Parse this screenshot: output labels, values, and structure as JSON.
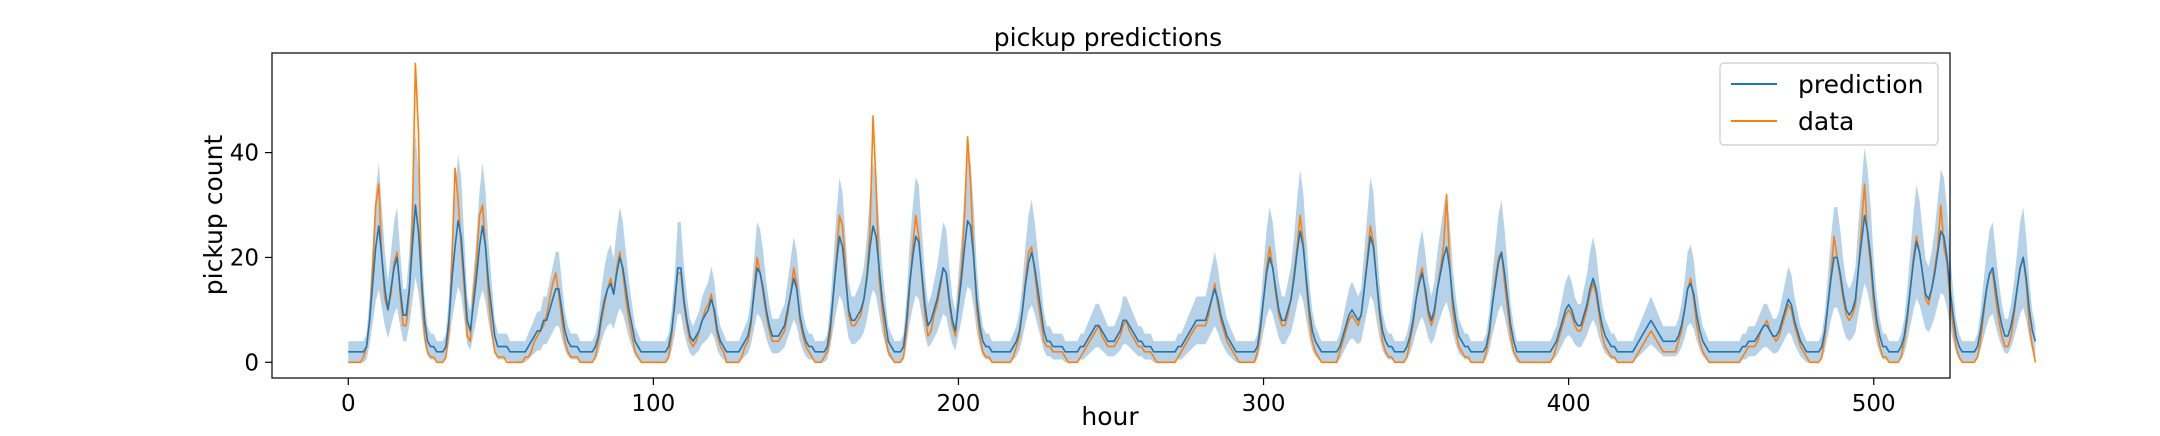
{
  "chart_data": {
    "type": "line",
    "title": "pickup predictions",
    "xlabel": "hour",
    "ylabel": "pickup count",
    "xlim": [
      -25,
      525
    ],
    "ylim": [
      -3,
      59
    ],
    "xticks": [
      0,
      100,
      200,
      300,
      400,
      500
    ],
    "yticks": [
      0,
      20,
      40
    ],
    "grid": false,
    "legend_position": "top-right",
    "colors": {
      "prediction": "#1f77b4",
      "data": "#ff7f0e",
      "band": "#9ec3e0"
    },
    "band_label": "",
    "x_step": 1,
    "series": [
      {
        "name": "prediction",
        "values": [
          2,
          2,
          2,
          2,
          2,
          2,
          3,
          8,
          15,
          22,
          26,
          20,
          14,
          10,
          14,
          18,
          20,
          14,
          9,
          9,
          14,
          22,
          30,
          25,
          16,
          8,
          4,
          3,
          3,
          2,
          2,
          2,
          3,
          8,
          16,
          22,
          27,
          24,
          16,
          8,
          6,
          11,
          16,
          22,
          26,
          22,
          15,
          10,
          5,
          3,
          3,
          3,
          3,
          2,
          2,
          2,
          2,
          2,
          2,
          3,
          4,
          5,
          6,
          6,
          8,
          8,
          10,
          12,
          14,
          14,
          10,
          6,
          4,
          3,
          3,
          3,
          2,
          2,
          2,
          2,
          2,
          3,
          5,
          9,
          12,
          14,
          15,
          13,
          17,
          20,
          18,
          14,
          10,
          7,
          4,
          3,
          2,
          2,
          2,
          2,
          2,
          2,
          2,
          2,
          2,
          3,
          6,
          11,
          18,
          18,
          12,
          8,
          5,
          4,
          5,
          6,
          8,
          9,
          10,
          12,
          10,
          6,
          4,
          3,
          2,
          2,
          2,
          2,
          2,
          3,
          4,
          5,
          8,
          13,
          18,
          17,
          14,
          10,
          7,
          5,
          5,
          5,
          6,
          7,
          10,
          13,
          16,
          14,
          9,
          6,
          4,
          3,
          3,
          2,
          2,
          2,
          2,
          3,
          7,
          13,
          19,
          24,
          22,
          16,
          10,
          8,
          8,
          9,
          10,
          12,
          16,
          22,
          26,
          24,
          18,
          12,
          8,
          4,
          3,
          2,
          2,
          2,
          3,
          8,
          15,
          20,
          24,
          23,
          17,
          11,
          7,
          8,
          10,
          12,
          15,
          18,
          17,
          12,
          8,
          6,
          11,
          16,
          22,
          27,
          26,
          20,
          12,
          7,
          4,
          3,
          3,
          2,
          2,
          2,
          2,
          2,
          2,
          2,
          3,
          4,
          6,
          10,
          15,
          19,
          21,
          18,
          14,
          10,
          6,
          4,
          4,
          3,
          3,
          3,
          3,
          2,
          2,
          2,
          2,
          2,
          3,
          3,
          4,
          5,
          6,
          7,
          7,
          6,
          5,
          4,
          4,
          4,
          5,
          6,
          8,
          8,
          7,
          6,
          5,
          4,
          4,
          3,
          3,
          3,
          2,
          2,
          2,
          2,
          2,
          2,
          2,
          2,
          3,
          3,
          4,
          5,
          6,
          7,
          8,
          8,
          8,
          8,
          10,
          12,
          14,
          12,
          9,
          7,
          5,
          4,
          3,
          2,
          2,
          2,
          2,
          2,
          2,
          2,
          3,
          7,
          12,
          17,
          20,
          18,
          14,
          10,
          8,
          8,
          10,
          12,
          16,
          21,
          25,
          22,
          16,
          10,
          6,
          4,
          3,
          2,
          2,
          2,
          2,
          2,
          2,
          3,
          5,
          7,
          9,
          10,
          9,
          8,
          9,
          14,
          19,
          24,
          22,
          16,
          10,
          6,
          4,
          3,
          3,
          2,
          2,
          2,
          2,
          3,
          5,
          8,
          12,
          15,
          17,
          14,
          10,
          8,
          10,
          14,
          17,
          20,
          22,
          18,
          12,
          8,
          5,
          4,
          3,
          3,
          2,
          2,
          2,
          2,
          2,
          3,
          6,
          11,
          15,
          19,
          21,
          17,
          12,
          7,
          4,
          2,
          2,
          2,
          2,
          2,
          2,
          2,
          2,
          2,
          2,
          2,
          2,
          3,
          4,
          6,
          8,
          10,
          11,
          10,
          8,
          7,
          7,
          9,
          11,
          14,
          16,
          14,
          10,
          7,
          5,
          4,
          3,
          3,
          2,
          2,
          2,
          2,
          2,
          2,
          3,
          4,
          5,
          6,
          7,
          8,
          7,
          6,
          5,
          4,
          4,
          4,
          4,
          4,
          5,
          7,
          10,
          14,
          15,
          13,
          9,
          6,
          4,
          3,
          2,
          2,
          2,
          2,
          2,
          2,
          2,
          2,
          2,
          2,
          2,
          3,
          3,
          4,
          4,
          4,
          5,
          6,
          7,
          7,
          6,
          5,
          5,
          6,
          8,
          10,
          12,
          11,
          8,
          6,
          4,
          3,
          2,
          2,
          2,
          2,
          2,
          3,
          6,
          11,
          16,
          20,
          20,
          17,
          13,
          10,
          9,
          10,
          12,
          18,
          23,
          28,
          25,
          20,
          13,
          8,
          5,
          3,
          3,
          2,
          2,
          2,
          2,
          3,
          5,
          9,
          14,
          19,
          23,
          21,
          17,
          13,
          12,
          14,
          17,
          21,
          25,
          24,
          20,
          14,
          9,
          5,
          3,
          2,
          2,
          2,
          2,
          2,
          3,
          6,
          10,
          14,
          17,
          18,
          14,
          10,
          7,
          5,
          5,
          7,
          10,
          14,
          18,
          20,
          16,
          10,
          6,
          4
        ]
      },
      {
        "name": "data",
        "values": [
          0,
          0,
          0,
          0,
          0,
          1,
          3,
          8,
          18,
          30,
          34,
          20,
          12,
          10,
          13,
          19,
          21,
          13,
          7,
          7,
          13,
          27,
          57,
          44,
          14,
          5,
          2,
          1,
          1,
          0,
          0,
          0,
          1,
          6,
          20,
          37,
          31,
          22,
          14,
          5,
          4,
          13,
          19,
          28,
          30,
          22,
          12,
          6,
          2,
          1,
          1,
          1,
          0,
          0,
          0,
          0,
          0,
          0,
          1,
          1,
          2,
          4,
          5,
          6,
          7,
          9,
          12,
          15,
          17,
          13,
          8,
          4,
          2,
          1,
          1,
          1,
          0,
          0,
          0,
          0,
          0,
          1,
          4,
          8,
          11,
          14,
          16,
          13,
          18,
          21,
          17,
          12,
          8,
          5,
          2,
          1,
          0,
          0,
          0,
          0,
          0,
          0,
          0,
          0,
          0,
          1,
          5,
          12,
          17,
          17,
          11,
          7,
          4,
          3,
          4,
          6,
          8,
          10,
          11,
          13,
          9,
          5,
          3,
          2,
          0,
          0,
          0,
          0,
          0,
          1,
          3,
          4,
          7,
          14,
          20,
          17,
          13,
          9,
          6,
          4,
          4,
          4,
          5,
          6,
          9,
          13,
          18,
          15,
          8,
          5,
          3,
          2,
          1,
          0,
          0,
          0,
          1,
          2,
          5,
          13,
          20,
          28,
          26,
          18,
          9,
          7,
          7,
          8,
          9,
          12,
          17,
          25,
          47,
          34,
          16,
          10,
          5,
          2,
          1,
          0,
          0,
          0,
          1,
          6,
          14,
          22,
          28,
          24,
          16,
          9,
          5,
          6,
          9,
          11,
          14,
          18,
          17,
          11,
          7,
          5,
          12,
          18,
          28,
          43,
          34,
          20,
          10,
          5,
          2,
          1,
          1,
          0,
          0,
          0,
          0,
          0,
          0,
          0,
          1,
          3,
          5,
          10,
          16,
          21,
          22,
          17,
          12,
          8,
          4,
          3,
          3,
          2,
          2,
          2,
          2,
          1,
          0,
          0,
          0,
          0,
          1,
          2,
          3,
          4,
          5,
          6,
          7,
          5,
          4,
          3,
          3,
          3,
          4,
          5,
          7,
          8,
          6,
          5,
          4,
          3,
          3,
          2,
          2,
          2,
          1,
          0,
          0,
          0,
          0,
          0,
          0,
          0,
          1,
          2,
          3,
          4,
          5,
          6,
          7,
          7,
          7,
          7,
          9,
          12,
          15,
          11,
          8,
          6,
          4,
          3,
          2,
          1,
          0,
          0,
          0,
          0,
          0,
          0,
          2,
          6,
          12,
          18,
          22,
          18,
          13,
          9,
          7,
          7,
          9,
          12,
          17,
          22,
          28,
          23,
          15,
          8,
          4,
          2,
          1,
          0,
          0,
          0,
          0,
          0,
          0,
          2,
          4,
          6,
          8,
          9,
          8,
          7,
          9,
          14,
          20,
          26,
          23,
          16,
          9,
          4,
          2,
          1,
          1,
          0,
          0,
          0,
          0,
          1,
          4,
          7,
          12,
          16,
          18,
          13,
          9,
          7,
          9,
          14,
          18,
          22,
          32,
          19,
          10,
          6,
          3,
          2,
          1,
          1,
          0,
          0,
          0,
          0,
          0,
          2,
          5,
          11,
          16,
          20,
          21,
          15,
          10,
          5,
          2,
          1,
          0,
          0,
          0,
          0,
          0,
          0,
          0,
          0,
          0,
          0,
          0,
          1,
          3,
          5,
          7,
          9,
          10,
          9,
          7,
          6,
          6,
          8,
          10,
          13,
          15,
          13,
          9,
          5,
          3,
          2,
          1,
          1,
          0,
          0,
          0,
          0,
          0,
          0,
          1,
          2,
          3,
          4,
          5,
          6,
          5,
          4,
          3,
          2,
          2,
          2,
          2,
          2,
          4,
          6,
          10,
          14,
          16,
          12,
          7,
          4,
          2,
          1,
          0,
          0,
          0,
          0,
          0,
          0,
          0,
          0,
          0,
          0,
          0,
          1,
          2,
          3,
          3,
          3,
          4,
          6,
          7,
          8,
          6,
          5,
          4,
          5,
          7,
          9,
          11,
          10,
          7,
          5,
          3,
          2,
          1,
          0,
          0,
          0,
          0,
          1,
          5,
          11,
          17,
          24,
          20,
          16,
          12,
          9,
          8,
          9,
          11,
          18,
          26,
          34,
          24,
          18,
          11,
          6,
          3,
          1,
          1,
          0,
          0,
          0,
          0,
          1,
          4,
          8,
          14,
          20,
          24,
          21,
          17,
          12,
          11,
          14,
          18,
          22,
          30,
          22,
          19,
          12,
          7,
          3,
          1,
          0,
          0,
          0,
          0,
          0,
          1,
          4,
          9,
          14,
          17,
          17,
          12,
          8,
          5,
          3,
          3,
          5,
          9,
          14,
          18,
          20,
          15,
          7,
          3,
          0
        ]
      }
    ]
  }
}
